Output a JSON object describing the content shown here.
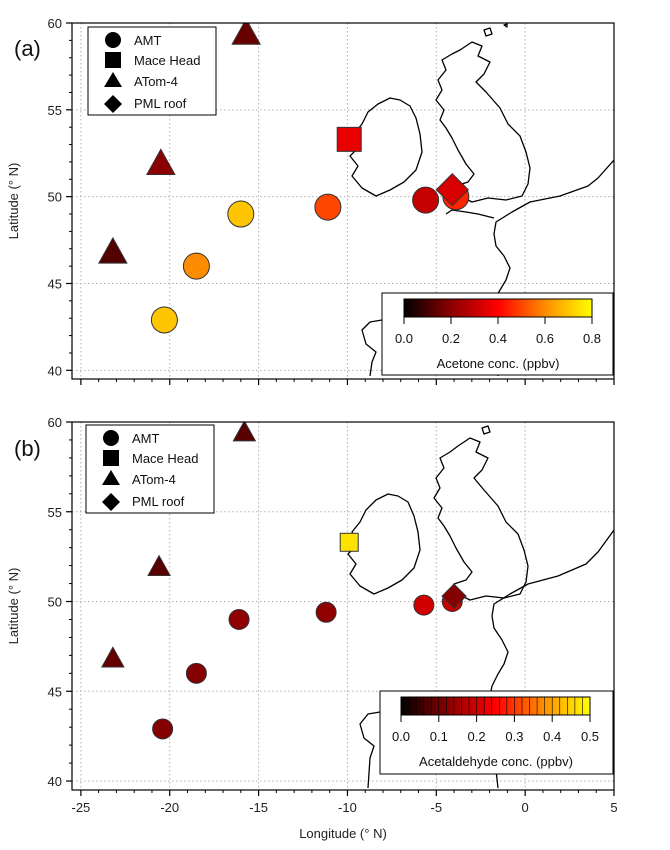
{
  "chart_data": [
    {
      "type": "scatter",
      "panel_label": "(a)",
      "xlabel": "",
      "ylabel": "Latitude (° N)",
      "xlim": [
        -25.5,
        5
      ],
      "ylim": [
        39.5,
        60
      ],
      "x_ticks": [
        -25,
        -20,
        -15,
        -10,
        -5,
        0,
        5
      ],
      "x_tick_labels": [
        "",
        "",
        "",
        "",
        "",
        "",
        ""
      ],
      "y_ticks": [
        40,
        45,
        50,
        55,
        60
      ],
      "y_tick_labels": [
        "40",
        "45",
        "50",
        "55",
        "60"
      ],
      "grid": true,
      "legend": {
        "placement": "top-left",
        "entries": [
          {
            "label": "AMT",
            "marker": "circle"
          },
          {
            "label": "Mace Head",
            "marker": "square"
          },
          {
            "label": "ATom-4",
            "marker": "triangle"
          },
          {
            "label": "PML roof",
            "marker": "diamond"
          }
        ]
      },
      "colorbar": {
        "label": "Acetone conc. (ppbv)",
        "range": [
          0,
          0.8
        ],
        "ticks": [
          0.0,
          0.2,
          0.4,
          0.6,
          0.8
        ],
        "tick_labels": [
          "0.0",
          "0.2",
          "0.4",
          "0.6",
          "0.8"
        ],
        "placement": "bottom-right",
        "colormap": [
          "#000000",
          "#8b0000",
          "#ff0000",
          "#ff8c00",
          "#ffff00"
        ]
      },
      "series": [
        {
          "name": "AMT",
          "marker": "circle",
          "points": [
            {
              "x": -20.3,
              "y": 42.9,
              "value": 0.7
            },
            {
              "x": -18.5,
              "y": 46.0,
              "value": 0.6
            },
            {
              "x": -16.0,
              "y": 49.0,
              "value": 0.7
            },
            {
              "x": -11.1,
              "y": 49.4,
              "value": 0.5
            },
            {
              "x": -5.6,
              "y": 49.8,
              "value": 0.3
            },
            {
              "x": -3.9,
              "y": 50.0,
              "value": 0.45
            }
          ]
        },
        {
          "name": "Mace Head",
          "marker": "square",
          "points": [
            {
              "x": -9.9,
              "y": 53.3,
              "value": 0.36
            }
          ]
        },
        {
          "name": "ATom-4",
          "marker": "triangle",
          "points": [
            {
              "x": -15.7,
              "y": 59.5,
              "value": 0.15
            },
            {
              "x": -20.5,
              "y": 52.0,
              "value": 0.2
            },
            {
              "x": -23.2,
              "y": 46.9,
              "value": 0.12
            }
          ]
        },
        {
          "name": "PML roof",
          "marker": "diamond",
          "points": [
            {
              "x": -4.1,
              "y": 50.4,
              "value": 0.33
            }
          ]
        }
      ]
    },
    {
      "type": "scatter",
      "panel_label": "(b)",
      "xlabel": "Longitude (° N)",
      "ylabel": "Latitude (° N)",
      "xlim": [
        -25.5,
        5
      ],
      "ylim": [
        39.5,
        60
      ],
      "x_ticks": [
        -25,
        -20,
        -15,
        -10,
        -5,
        0,
        5
      ],
      "x_tick_labels": [
        "-25",
        "-20",
        "-15",
        "-10",
        "-5",
        "0",
        "5"
      ],
      "y_ticks": [
        40,
        45,
        50,
        55,
        60
      ],
      "y_tick_labels": [
        "40",
        "45",
        "50",
        "55",
        "60"
      ],
      "grid": true,
      "legend": {
        "placement": "top-left",
        "entries": [
          {
            "label": "AMT",
            "marker": "circle"
          },
          {
            "label": "Mace Head",
            "marker": "square"
          },
          {
            "label": "ATom-4",
            "marker": "triangle"
          },
          {
            "label": "PML roof",
            "marker": "diamond"
          }
        ]
      },
      "colorbar": {
        "label": "Acetaldehyde conc. (ppbv)",
        "range": [
          0,
          0.5
        ],
        "ticks": [
          0.0,
          0.1,
          0.2,
          0.3,
          0.4,
          0.5
        ],
        "tick_labels": [
          "0.0",
          "0.1",
          "0.2",
          "0.3",
          "0.4",
          "0.5"
        ],
        "minor_ticks": true,
        "placement": "bottom-right",
        "colormap": [
          "#000000",
          "#8b0000",
          "#ff0000",
          "#ff8c00",
          "#ffff00"
        ]
      },
      "series": [
        {
          "name": "AMT",
          "marker": "circle",
          "points": [
            {
              "x": -20.4,
              "y": 42.9,
              "value": 0.12
            },
            {
              "x": -18.5,
              "y": 46.0,
              "value": 0.12
            },
            {
              "x": -16.1,
              "y": 49.0,
              "value": 0.13
            },
            {
              "x": -11.2,
              "y": 49.4,
              "value": 0.13
            },
            {
              "x": -5.7,
              "y": 49.8,
              "value": 0.2
            },
            {
              "x": -4.1,
              "y": 50.0,
              "value": 0.19
            }
          ]
        },
        {
          "name": "Mace Head",
          "marker": "square",
          "points": [
            {
              "x": -9.9,
              "y": 53.3,
              "value": 0.47
            }
          ]
        },
        {
          "name": "ATom-4",
          "marker": "triangle",
          "points": [
            {
              "x": -15.8,
              "y": 59.5,
              "value": 0.08
            },
            {
              "x": -20.6,
              "y": 52.0,
              "value": 0.08
            },
            {
              "x": -23.2,
              "y": 46.9,
              "value": 0.09
            }
          ]
        },
        {
          "name": "PML roof",
          "marker": "diamond",
          "points": [
            {
              "x": -4.0,
              "y": 50.3,
              "value": 0.12
            }
          ]
        }
      ]
    }
  ]
}
